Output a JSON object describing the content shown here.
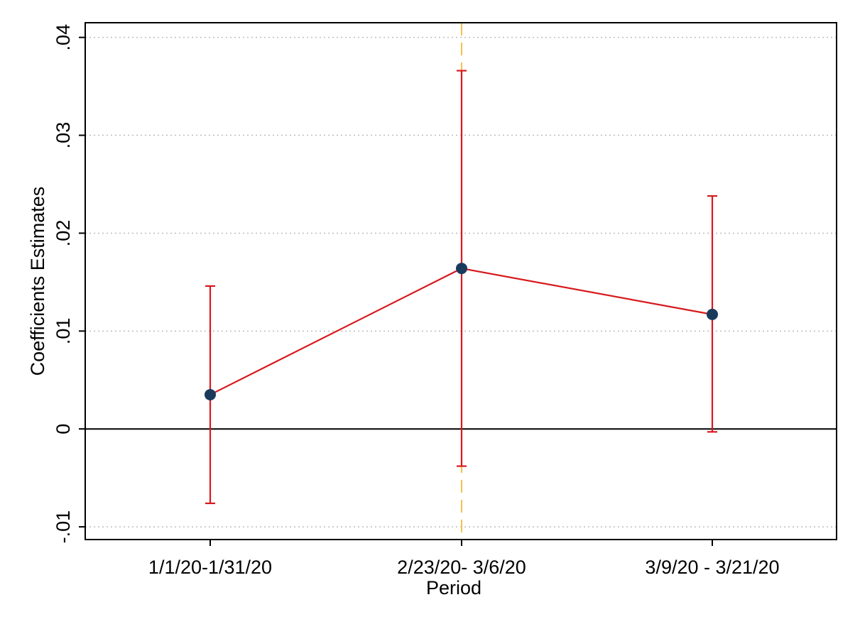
{
  "chart_data": {
    "type": "scatter",
    "title": "",
    "xlabel": "Period",
    "ylabel": "Coefficients Estimates",
    "categories": [
      "1/1/20-1/31/20",
      "2/23/20- 3/6/20",
      "3/9/20 - 3/21/20"
    ],
    "estimates": [
      0.0035,
      0.0164,
      0.0117
    ],
    "ci_lower": [
      -0.0076,
      -0.0038,
      -0.0003
    ],
    "ci_upper": [
      0.0146,
      0.0366,
      0.0238
    ],
    "ylim": [
      -0.0113,
      0.0415
    ],
    "yticks": [
      -0.01,
      0,
      0.01,
      0.02,
      0.03,
      0.04
    ],
    "ytick_labels": [
      "-.01",
      "0",
      ".01",
      ".02",
      ".03",
      ".04"
    ],
    "reference_hline": 0,
    "reference_vline_category": "2/23/20- 3/6/20",
    "grid": true,
    "colors": {
      "line": "#d7191c",
      "ci": "#d7191c",
      "marker": "#1a3a5c",
      "reference_vline": "#f2c14e",
      "zero_line": "#000000",
      "grid": "#bdbdbd"
    }
  }
}
